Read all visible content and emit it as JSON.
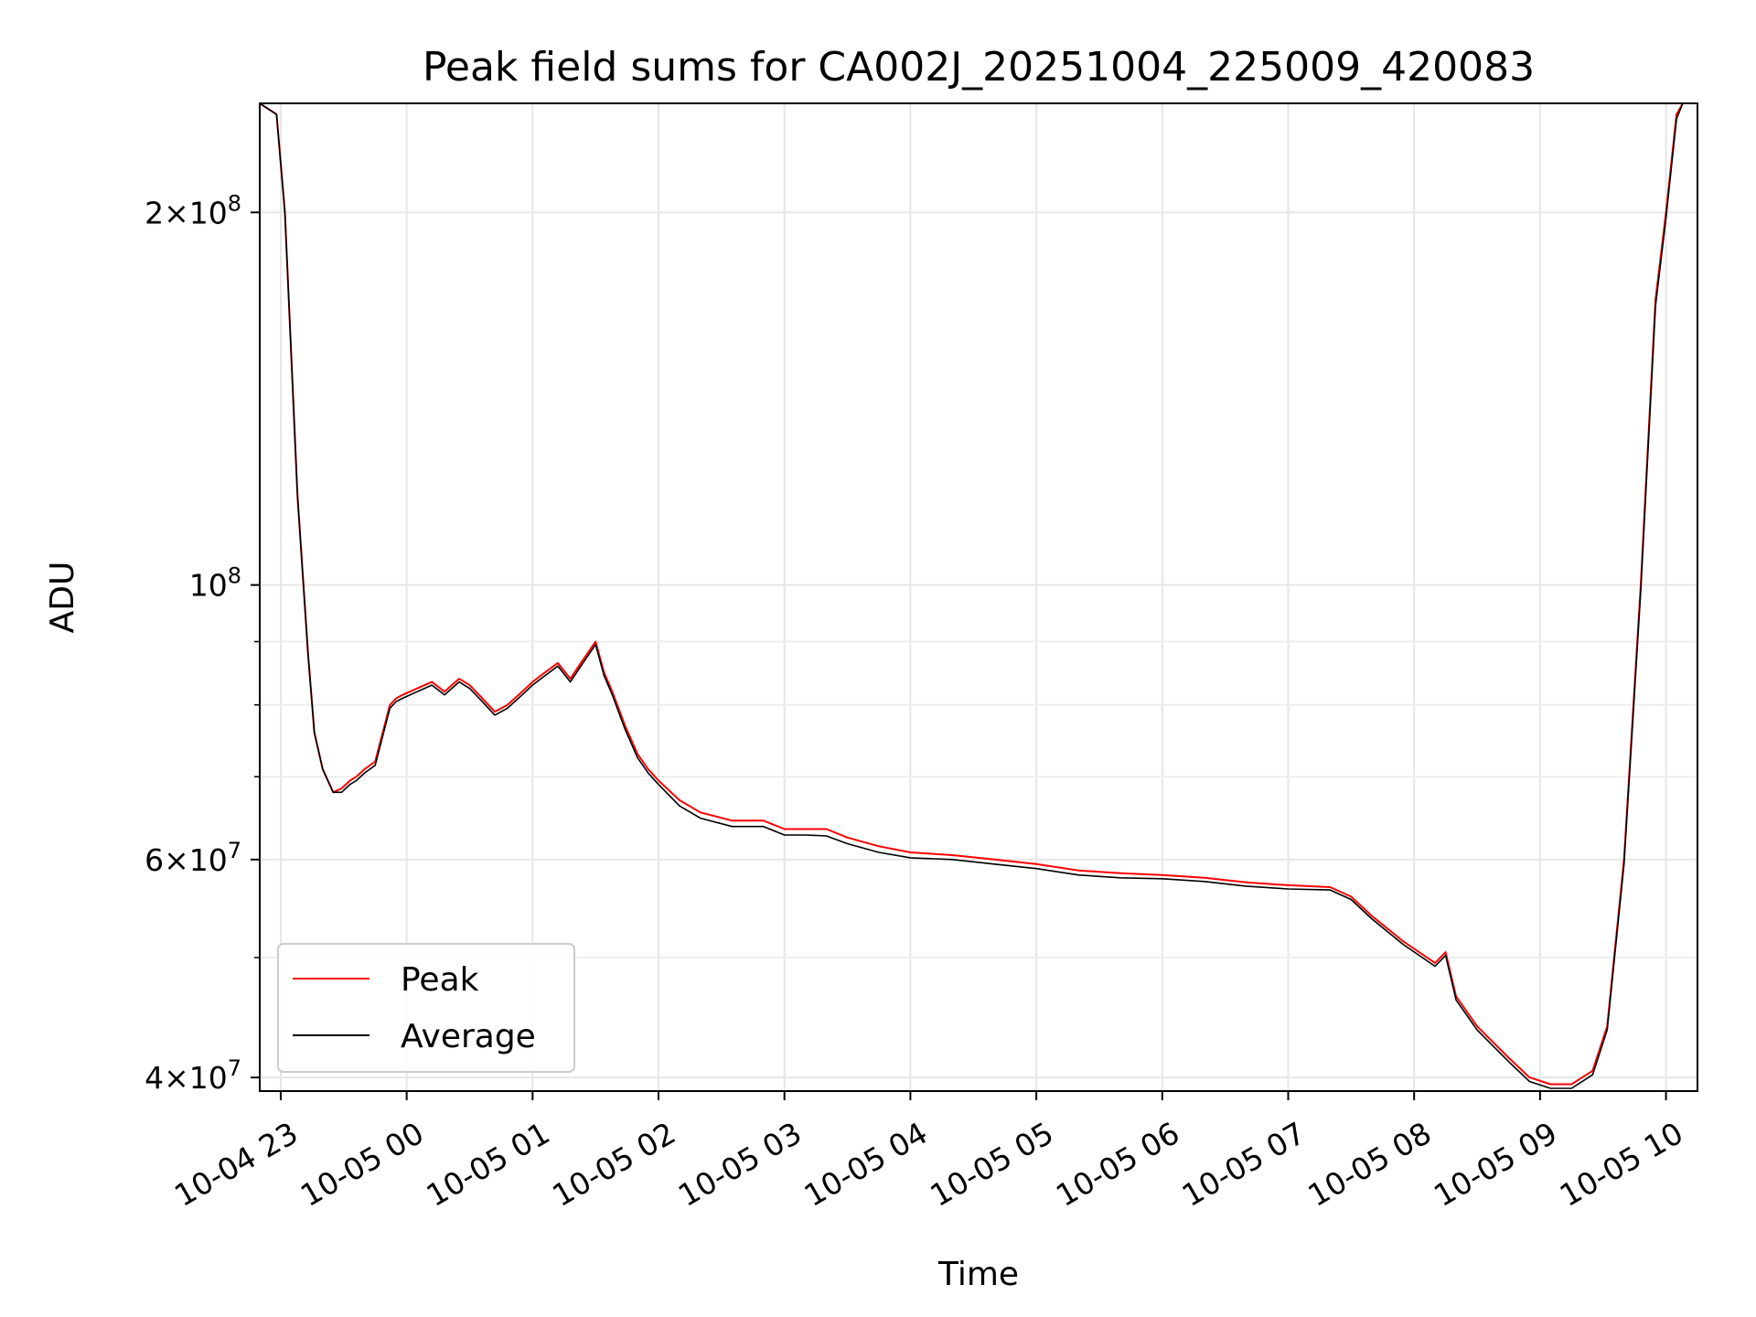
{
  "chart_data": {
    "type": "line",
    "title": "Peak field sums for CA002J_20251004_225009_420083",
    "xlabel": "Time",
    "ylabel": "ADU",
    "y_scale": "log",
    "ylim": [
      39000000,
      245000000
    ],
    "xlim": [
      "2025-10-04T22:50",
      "2025-10-05T10:15"
    ],
    "grid": true,
    "legend_position": "lower-left",
    "x_tick_labels": [
      {
        "t": "2025-10-04T23:00",
        "label": "10-04 23"
      },
      {
        "t": "2025-10-05T00:00",
        "label": "10-05 00"
      },
      {
        "t": "2025-10-05T01:00",
        "label": "10-05 01"
      },
      {
        "t": "2025-10-05T02:00",
        "label": "10-05 02"
      },
      {
        "t": "2025-10-05T03:00",
        "label": "10-05 03"
      },
      {
        "t": "2025-10-05T04:00",
        "label": "10-05 04"
      },
      {
        "t": "2025-10-05T05:00",
        "label": "10-05 05"
      },
      {
        "t": "2025-10-05T06:00",
        "label": "10-05 06"
      },
      {
        "t": "2025-10-05T07:00",
        "label": "10-05 07"
      },
      {
        "t": "2025-10-05T08:00",
        "label": "10-05 08"
      },
      {
        "t": "2025-10-05T09:00",
        "label": "10-05 09"
      },
      {
        "t": "2025-10-05T10:00",
        "label": "10-05 10"
      }
    ],
    "y_tick_labels": [
      {
        "value": 40000000,
        "base": "4",
        "exp": "7"
      },
      {
        "value": 60000000,
        "base": "6",
        "exp": "7"
      },
      {
        "value": 100000000,
        "base": "",
        "exp": "8"
      },
      {
        "value": 200000000,
        "base": "2",
        "exp": "8"
      }
    ],
    "y_minor_ticks": [
      50000000,
      70000000,
      80000000,
      90000000
    ],
    "series": [
      {
        "name": "Peak",
        "color": "#ff0000",
        "x": [
          "2025-10-04T22:50",
          "2025-10-04T22:58",
          "2025-10-04T23:02",
          "2025-10-04T23:08",
          "2025-10-04T23:13",
          "2025-10-04T23:16",
          "2025-10-04T23:20",
          "2025-10-04T23:25",
          "2025-10-04T23:29",
          "2025-10-04T23:33",
          "2025-10-04T23:36",
          "2025-10-04T23:40",
          "2025-10-04T23:45",
          "2025-10-04T23:52",
          "2025-10-04T23:55",
          "2025-10-04T23:58",
          "2025-10-05T00:05",
          "2025-10-05T00:12",
          "2025-10-05T00:18",
          "2025-10-05T00:25",
          "2025-10-05T00:30",
          "2025-10-05T00:36",
          "2025-10-05T00:42",
          "2025-10-05T00:48",
          "2025-10-05T00:55",
          "2025-10-05T01:00",
          "2025-10-05T01:06",
          "2025-10-05T01:12",
          "2025-10-05T01:18",
          "2025-10-05T01:24",
          "2025-10-05T01:30",
          "2025-10-05T01:34",
          "2025-10-05T01:38",
          "2025-10-05T01:44",
          "2025-10-05T01:50",
          "2025-10-05T01:55",
          "2025-10-05T02:00",
          "2025-10-05T02:10",
          "2025-10-05T02:20",
          "2025-10-05T02:35",
          "2025-10-05T02:50",
          "2025-10-05T03:00",
          "2025-10-05T03:10",
          "2025-10-05T03:20",
          "2025-10-05T03:30",
          "2025-10-05T03:45",
          "2025-10-05T04:00",
          "2025-10-05T04:20",
          "2025-10-05T04:40",
          "2025-10-05T05:00",
          "2025-10-05T05:20",
          "2025-10-05T05:40",
          "2025-10-05T06:00",
          "2025-10-05T06:20",
          "2025-10-05T06:40",
          "2025-10-05T07:00",
          "2025-10-05T07:20",
          "2025-10-05T07:30",
          "2025-10-05T07:40",
          "2025-10-05T07:55",
          "2025-10-05T08:10",
          "2025-10-05T08:15",
          "2025-10-05T08:20",
          "2025-10-05T08:30",
          "2025-10-05T08:45",
          "2025-10-05T08:55",
          "2025-10-05T09:05",
          "2025-10-05T09:15",
          "2025-10-05T09:25",
          "2025-10-05T09:32",
          "2025-10-05T09:40",
          "2025-10-05T09:48",
          "2025-10-05T09:55",
          "2025-10-05T10:00",
          "2025-10-05T10:05",
          "2025-10-05T10:08",
          "2025-10-05T10:15"
        ],
        "y": [
          245000000,
          240000000,
          200000000,
          118000000,
          88000000,
          76000000,
          71000000,
          68000000,
          68500000,
          69500000,
          70000000,
          71000000,
          72000000,
          80000000,
          81000000,
          81500000,
          82500000,
          83500000,
          82000000,
          84000000,
          83000000,
          81000000,
          79000000,
          80000000,
          82000000,
          83500000,
          85000000,
          86500000,
          84000000,
          87000000,
          90000000,
          85000000,
          82000000,
          77000000,
          73000000,
          71000000,
          69500000,
          67000000,
          65500000,
          64500000,
          64500000,
          63500000,
          63500000,
          63500000,
          62500000,
          61500000,
          60800000,
          60500000,
          60000000,
          59500000,
          58800000,
          58500000,
          58300000,
          58000000,
          57500000,
          57200000,
          57000000,
          56000000,
          54000000,
          51500000,
          49500000,
          50500000,
          46500000,
          44000000,
          41500000,
          40000000,
          39500000,
          39500000,
          40500000,
          44000000,
          60000000,
          100000000,
          170000000,
          200000000,
          240000000,
          245000000,
          245000000
        ]
      },
      {
        "name": "Average",
        "color": "#000000",
        "x": [
          "2025-10-04T22:50",
          "2025-10-04T22:58",
          "2025-10-04T23:02",
          "2025-10-04T23:08",
          "2025-10-04T23:13",
          "2025-10-04T23:16",
          "2025-10-04T23:20",
          "2025-10-04T23:25",
          "2025-10-04T23:29",
          "2025-10-04T23:33",
          "2025-10-04T23:36",
          "2025-10-04T23:40",
          "2025-10-04T23:45",
          "2025-10-04T23:52",
          "2025-10-04T23:55",
          "2025-10-04T23:58",
          "2025-10-05T00:05",
          "2025-10-05T00:12",
          "2025-10-05T00:18",
          "2025-10-05T00:25",
          "2025-10-05T00:30",
          "2025-10-05T00:36",
          "2025-10-05T00:42",
          "2025-10-05T00:48",
          "2025-10-05T00:55",
          "2025-10-05T01:00",
          "2025-10-05T01:06",
          "2025-10-05T01:12",
          "2025-10-05T01:18",
          "2025-10-05T01:24",
          "2025-10-05T01:30",
          "2025-10-05T01:34",
          "2025-10-05T01:38",
          "2025-10-05T01:44",
          "2025-10-05T01:50",
          "2025-10-05T01:55",
          "2025-10-05T02:00",
          "2025-10-05T02:10",
          "2025-10-05T02:20",
          "2025-10-05T02:35",
          "2025-10-05T02:50",
          "2025-10-05T03:00",
          "2025-10-05T03:10",
          "2025-10-05T03:20",
          "2025-10-05T03:30",
          "2025-10-05T03:45",
          "2025-10-05T04:00",
          "2025-10-05T04:20",
          "2025-10-05T04:40",
          "2025-10-05T05:00",
          "2025-10-05T05:20",
          "2025-10-05T05:40",
          "2025-10-05T06:00",
          "2025-10-05T06:20",
          "2025-10-05T06:40",
          "2025-10-05T07:00",
          "2025-10-05T07:20",
          "2025-10-05T07:30",
          "2025-10-05T07:40",
          "2025-10-05T07:55",
          "2025-10-05T08:10",
          "2025-10-05T08:15",
          "2025-10-05T08:20",
          "2025-10-05T08:30",
          "2025-10-05T08:45",
          "2025-10-05T08:55",
          "2025-10-05T09:05",
          "2025-10-05T09:15",
          "2025-10-05T09:25",
          "2025-10-05T09:32",
          "2025-10-05T09:40",
          "2025-10-05T09:48",
          "2025-10-05T09:55",
          "2025-10-05T10:00",
          "2025-10-05T10:05",
          "2025-10-05T10:08",
          "2025-10-05T10:15"
        ],
        "y": [
          245000000,
          240000000,
          200000000,
          118000000,
          88000000,
          76000000,
          71000000,
          68000000,
          68000000,
          69000000,
          69500000,
          70500000,
          71500000,
          79500000,
          80500000,
          81000000,
          82000000,
          83000000,
          81500000,
          83500000,
          82500000,
          80500000,
          78500000,
          79500000,
          81500000,
          83000000,
          84500000,
          86000000,
          83500000,
          86500000,
          89500000,
          84500000,
          81500000,
          76500000,
          72500000,
          70500000,
          69000000,
          66300000,
          64800000,
          63800000,
          63800000,
          62800000,
          62800000,
          62700000,
          61800000,
          60800000,
          60200000,
          60000000,
          59500000,
          59000000,
          58300000,
          58000000,
          57900000,
          57600000,
          57100000,
          56800000,
          56700000,
          55700000,
          53700000,
          51200000,
          49200000,
          50200000,
          46200000,
          43700000,
          41200000,
          39700000,
          39200000,
          39200000,
          40200000,
          43700000,
          59500000,
          99000000,
          168000000,
          198000000,
          238000000,
          245000000,
          245000000
        ]
      }
    ]
  }
}
